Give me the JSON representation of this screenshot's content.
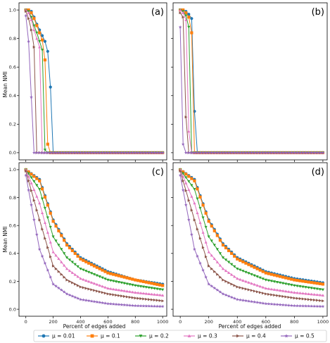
{
  "figure": {
    "ylabel": "Mean NMI",
    "xlabel": "Percent of edges added"
  },
  "legend": {
    "entries": [
      "μ = 0.01",
      "μ = 0.1",
      "μ = 0.2",
      "μ = 0.3",
      "μ = 0.4",
      "μ = 0.5"
    ],
    "colors": [
      "#1f77b4",
      "#ff7f0e",
      "#2ca02c",
      "#e377c2",
      "#8c564b",
      "#9467bd"
    ],
    "markers": [
      "circle",
      "square",
      "triangle-down",
      "triangle-up",
      "triangle-right",
      "star"
    ]
  },
  "chart_data": [
    {
      "type": "line",
      "panel_label": "(a)",
      "xlim": [
        -50,
        1030
      ],
      "ylim": [
        -0.05,
        1.05
      ],
      "xticks": [
        0,
        200,
        400,
        600,
        800,
        1000
      ],
      "yticks": [
        0.0,
        0.2,
        0.4,
        0.6,
        0.8,
        1.0
      ],
      "series": [
        {
          "name": "μ = 0.01",
          "x": [
            0,
            20,
            40,
            60,
            80,
            100,
            120,
            140,
            160,
            180,
            200
          ],
          "y": [
            1.0,
            1.0,
            0.99,
            0.95,
            0.9,
            0.86,
            0.82,
            0.78,
            0.71,
            0.46,
            0.0
          ]
        },
        {
          "name": "μ = 0.1",
          "x": [
            0,
            20,
            40,
            60,
            80,
            100,
            120,
            140,
            160,
            180
          ],
          "y": [
            1.0,
            1.0,
            0.98,
            0.94,
            0.89,
            0.84,
            0.79,
            0.65,
            0.06,
            0.0
          ]
        },
        {
          "name": "μ = 0.2",
          "x": [
            0,
            20,
            40,
            60,
            80,
            100,
            120,
            140,
            160
          ],
          "y": [
            1.0,
            0.99,
            0.95,
            0.89,
            0.84,
            0.78,
            0.72,
            0.02,
            0.0
          ]
        },
        {
          "name": "μ = 0.3",
          "x": [
            0,
            20,
            40,
            60,
            80,
            100,
            120
          ],
          "y": [
            1.0,
            0.98,
            0.93,
            0.86,
            0.8,
            0.74,
            0.0
          ]
        },
        {
          "name": "μ = 0.4",
          "x": [
            0,
            20,
            40,
            60,
            80
          ],
          "y": [
            0.99,
            0.94,
            0.86,
            0.74,
            0.0
          ]
        },
        {
          "name": "μ = 0.5",
          "x": [
            0,
            20,
            40,
            60
          ],
          "y": [
            0.96,
            0.78,
            0.39,
            0.0
          ]
        }
      ]
    },
    {
      "type": "line",
      "panel_label": "(b)",
      "xlim": [
        -50,
        1030
      ],
      "ylim": [
        -0.05,
        1.05
      ],
      "xticks": [
        0,
        200,
        400,
        600,
        800,
        1000
      ],
      "yticks": [
        0.0,
        0.2,
        0.4,
        0.6,
        0.8,
        1.0
      ],
      "series": [
        {
          "name": "μ = 0.01",
          "x": [
            0,
            20,
            40,
            60,
            80,
            100,
            120
          ],
          "y": [
            1.0,
            1.0,
            0.99,
            0.97,
            0.94,
            0.29,
            0.0
          ]
        },
        {
          "name": "μ = 0.1",
          "x": [
            0,
            20,
            40,
            60,
            80,
            100
          ],
          "y": [
            1.0,
            1.0,
            0.98,
            0.95,
            0.84,
            0.0
          ]
        },
        {
          "name": "μ = 0.2",
          "x": [
            0,
            20,
            40,
            60,
            80
          ],
          "y": [
            1.0,
            0.99,
            0.96,
            0.88,
            0.0
          ]
        },
        {
          "name": "μ = 0.3",
          "x": [
            0,
            20,
            40,
            60,
            80
          ],
          "y": [
            1.0,
            0.98,
            0.93,
            0.15,
            0.0
          ]
        },
        {
          "name": "μ = 0.4",
          "x": [
            0,
            20,
            40,
            60
          ],
          "y": [
            0.98,
            0.95,
            0.25,
            0.0
          ]
        },
        {
          "name": "μ = 0.5",
          "x": [
            0,
            20,
            40
          ],
          "y": [
            0.88,
            0.06,
            0.0
          ]
        }
      ]
    },
    {
      "type": "line",
      "panel_label": "(c)",
      "xlim": [
        -50,
        1030
      ],
      "ylim": [
        -0.05,
        1.05
      ],
      "xticks": [
        0,
        200,
        400,
        600,
        800,
        1000
      ],
      "yticks": [
        0.0,
        0.2,
        0.4,
        0.6,
        0.8,
        1.0
      ],
      "series": [
        {
          "name": "μ = 0.01",
          "points": [
            [
              0,
              1.0
            ],
            [
              100,
              0.93
            ],
            [
              200,
              0.64
            ],
            [
              300,
              0.47
            ],
            [
              400,
              0.37
            ],
            [
              600,
              0.27
            ],
            [
              800,
              0.21
            ],
            [
              1000,
              0.18
            ]
          ]
        },
        {
          "name": "μ = 0.1",
          "points": [
            [
              0,
              1.0
            ],
            [
              100,
              0.92
            ],
            [
              200,
              0.63
            ],
            [
              300,
              0.46
            ],
            [
              400,
              0.36
            ],
            [
              600,
              0.26
            ],
            [
              800,
              0.21
            ],
            [
              1000,
              0.17
            ]
          ]
        },
        {
          "name": "μ = 0.2",
          "points": [
            [
              0,
              1.0
            ],
            [
              100,
              0.86
            ],
            [
              200,
              0.52
            ],
            [
              300,
              0.37
            ],
            [
              400,
              0.29
            ],
            [
              600,
              0.21
            ],
            [
              800,
              0.17
            ],
            [
              1000,
              0.14
            ]
          ]
        },
        {
          "name": "μ = 0.3",
          "points": [
            [
              0,
              1.0
            ],
            [
              100,
              0.76
            ],
            [
              200,
              0.41
            ],
            [
              300,
              0.29
            ],
            [
              400,
              0.22
            ],
            [
              600,
              0.15
            ],
            [
              800,
              0.12
            ],
            [
              1000,
              0.1
            ]
          ]
        },
        {
          "name": "μ = 0.4",
          "points": [
            [
              0,
              0.99
            ],
            [
              100,
              0.64
            ],
            [
              200,
              0.31
            ],
            [
              300,
              0.21
            ],
            [
              400,
              0.16
            ],
            [
              600,
              0.11
            ],
            [
              800,
              0.08
            ],
            [
              1000,
              0.06
            ]
          ]
        },
        {
          "name": "μ = 0.5",
          "points": [
            [
              0,
              0.96
            ],
            [
              100,
              0.43
            ],
            [
              200,
              0.18
            ],
            [
              300,
              0.11
            ],
            [
              400,
              0.07
            ],
            [
              600,
              0.04
            ],
            [
              800,
              0.025
            ],
            [
              1000,
              0.02
            ]
          ]
        }
      ]
    },
    {
      "type": "line",
      "panel_label": "(d)",
      "xlim": [
        -50,
        1030
      ],
      "ylim": [
        -0.05,
        1.05
      ],
      "xticks": [
        0,
        200,
        400,
        600,
        800,
        1000
      ],
      "yticks": [
        0.0,
        0.2,
        0.4,
        0.6,
        0.8,
        1.0
      ],
      "series": [
        {
          "name": "μ = 0.01",
          "points": [
            [
              0,
              1.0
            ],
            [
              100,
              0.93
            ],
            [
              200,
              0.64
            ],
            [
              300,
              0.47
            ],
            [
              400,
              0.37
            ],
            [
              600,
              0.27
            ],
            [
              800,
              0.22
            ],
            [
              1000,
              0.19
            ]
          ]
        },
        {
          "name": "μ = 0.1",
          "points": [
            [
              0,
              1.0
            ],
            [
              100,
              0.92
            ],
            [
              200,
              0.63
            ],
            [
              300,
              0.46
            ],
            [
              400,
              0.36
            ],
            [
              600,
              0.26
            ],
            [
              800,
              0.21
            ],
            [
              1000,
              0.18
            ]
          ]
        },
        {
          "name": "μ = 0.2",
          "points": [
            [
              0,
              1.0
            ],
            [
              100,
              0.86
            ],
            [
              200,
              0.52
            ],
            [
              300,
              0.37
            ],
            [
              400,
              0.29
            ],
            [
              600,
              0.21
            ],
            [
              800,
              0.17
            ],
            [
              1000,
              0.14
            ]
          ]
        },
        {
          "name": "μ = 0.3",
          "points": [
            [
              0,
              1.0
            ],
            [
              100,
              0.76
            ],
            [
              200,
              0.41
            ],
            [
              300,
              0.29
            ],
            [
              400,
              0.22
            ],
            [
              600,
              0.15
            ],
            [
              800,
              0.12
            ],
            [
              1000,
              0.1
            ]
          ]
        },
        {
          "name": "μ = 0.4",
          "points": [
            [
              0,
              0.99
            ],
            [
              100,
              0.64
            ],
            [
              200,
              0.31
            ],
            [
              300,
              0.21
            ],
            [
              400,
              0.16
            ],
            [
              600,
              0.11
            ],
            [
              800,
              0.08
            ],
            [
              1000,
              0.06
            ]
          ]
        },
        {
          "name": "μ = 0.5",
          "points": [
            [
              0,
              0.96
            ],
            [
              100,
              0.43
            ],
            [
              200,
              0.18
            ],
            [
              300,
              0.11
            ],
            [
              400,
              0.07
            ],
            [
              600,
              0.04
            ],
            [
              800,
              0.025
            ],
            [
              1000,
              0.02
            ]
          ]
        }
      ]
    }
  ]
}
